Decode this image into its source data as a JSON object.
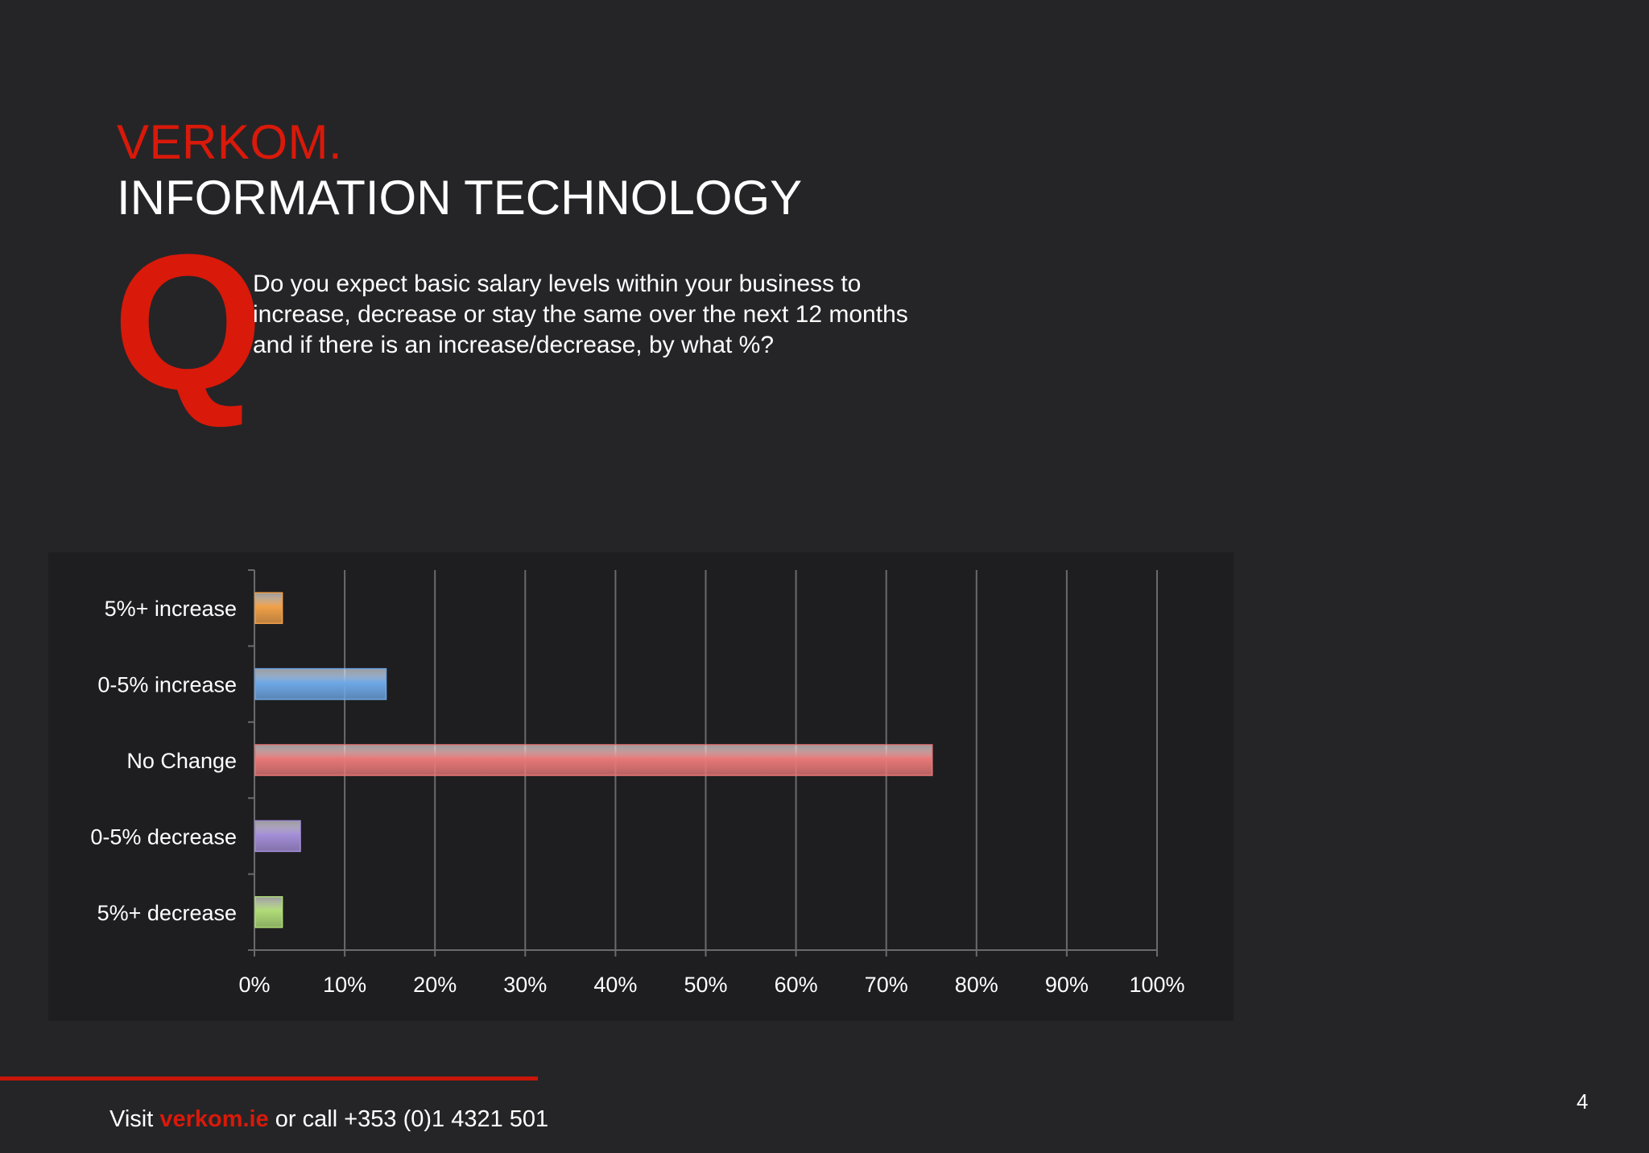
{
  "header": {
    "brand": "VERKOM.",
    "section": "INFORMATION TECHNOLOGY"
  },
  "question": {
    "mark": "Q",
    "text_lines": [
      "Do you expect basic salary levels within your business to",
      "increase, decrease or stay the same over the next 12 months",
      "and if there is an increase/decrease, by what %?"
    ]
  },
  "chart_data": {
    "type": "bar",
    "orientation": "horizontal",
    "title": "",
    "xlabel": "",
    "ylabel": "",
    "xlim": [
      0,
      100
    ],
    "x_ticks": [
      "0%",
      "10%",
      "20%",
      "30%",
      "40%",
      "50%",
      "60%",
      "70%",
      "80%",
      "90%",
      "100%"
    ],
    "grid": true,
    "categories": [
      "5%+ increase",
      "0-5% increase",
      "No Change",
      "0-5% decrease",
      "5%+ decrease"
    ],
    "values": [
      3,
      14.5,
      75,
      5,
      3
    ],
    "colors": [
      "#f0a048",
      "#6ea8e6",
      "#e87878",
      "#a48ed8",
      "#b0dc78"
    ]
  },
  "footer": {
    "prefix": "Visit ",
    "site": "verkom.ie",
    "suffix": " or call +353 (0)1 4321 501",
    "page_number": "4"
  }
}
